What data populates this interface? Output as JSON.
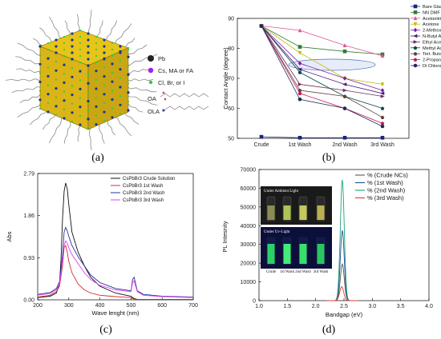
{
  "panel_labels": [
    "(a)",
    "(b)",
    "(c)",
    "(d)"
  ],
  "schematic": {
    "legend": [
      {
        "label": "Pb",
        "color": "#222222"
      },
      {
        "label": "Cs, MA or FA",
        "color": "#a020f0"
      },
      {
        "label": "Cl, Br, or I",
        "color": "#33cc33"
      }
    ],
    "ligands": [
      "OA",
      "OLA"
    ]
  },
  "chart_data": [
    {
      "type": "line",
      "panel": "b",
      "ylabel": "Contact Angle (degree)",
      "xlabel": "",
      "categories": [
        "Crude",
        "1st Wash",
        "2nd Wash",
        "3rd Wash"
      ],
      "ylim": [
        50,
        90
      ],
      "yticks": [
        50,
        60,
        70,
        80,
        90
      ],
      "series": [
        {
          "name": "Bare Glass",
          "color": "#1a237e",
          "marker": "square",
          "values": [
            50.5,
            50.2,
            50.2,
            50.2
          ]
        },
        {
          "name": "NN DMF",
          "color": "#2e7d32",
          "marker": "square",
          "values": [
            87.5,
            80.5,
            79.0,
            78.0
          ]
        },
        {
          "name": "Acetonitrile",
          "color": "#e0559a",
          "marker": "triangle",
          "values": [
            87.5,
            86.0,
            81.0,
            77.5
          ]
        },
        {
          "name": "Acetone",
          "color": "#bdbd00",
          "marker": "triangle-down",
          "values": [
            87.5,
            78.5,
            70.0,
            68.0
          ]
        },
        {
          "name": "2-Methoxy Ethanol",
          "color": "#7b1fa2",
          "marker": "diamond",
          "values": [
            87.5,
            75.0,
            70.0,
            66.0
          ]
        },
        {
          "name": "N-Butyl Acetate",
          "color": "#4a148c",
          "marker": "triangle-left",
          "values": [
            87.5,
            73.0,
            68.0,
            65.0
          ]
        },
        {
          "name": "Ethyl Acetate",
          "color": "#6d2b5b",
          "marker": "triangle-right",
          "values": [
            87.5,
            68.0,
            66.0,
            64.0
          ]
        },
        {
          "name": "Methyl Acetate",
          "color": "#004d40",
          "marker": "hexagon",
          "values": [
            87.5,
            72.0,
            64.0,
            60.0
          ]
        },
        {
          "name": "Tert. Butanol",
          "color": "#5d4037",
          "marker": "star",
          "values": [
            87.5,
            66.0,
            64.0,
            57.0
          ]
        },
        {
          "name": "2-Propanol",
          "color": "#c2185b",
          "marker": "pentagon",
          "values": [
            87.5,
            65.0,
            60.0,
            55.0
          ]
        },
        {
          "name": "Di Chloro Methane",
          "color": "#1e2a5a",
          "marker": "circle",
          "values": [
            87.5,
            63.0,
            60.0,
            54.0
          ]
        }
      ]
    },
    {
      "type": "line",
      "panel": "c",
      "xlabel": "Wave lenght (nm)",
      "ylabel": "Abs",
      "xlim": [
        200,
        700
      ],
      "ylim": [
        0,
        2.79
      ],
      "xticks": [
        200,
        300,
        400,
        500,
        600,
        700
      ],
      "yticks": [
        "0.00",
        "0.93",
        "1.86",
        "2.79"
      ],
      "series": [
        {
          "name": "CsPbBr3 Crude Solution",
          "color": "#111111",
          "x": [
            200,
            240,
            260,
            270,
            275,
            280,
            285,
            290,
            295,
            300,
            310,
            330,
            350,
            370,
            400,
            450,
            500,
            505,
            510,
            520,
            700
          ],
          "y": [
            0.05,
            0.08,
            0.15,
            0.35,
            0.9,
            1.8,
            2.4,
            2.58,
            2.45,
            2.1,
            1.5,
            1.05,
            0.75,
            0.5,
            0.3,
            0.15,
            0.08,
            0.05,
            0.03,
            0.01,
            0.01
          ]
        },
        {
          "name": "CsPbBr3 1st Wash",
          "color": "#d32f2f",
          "x": [
            200,
            240,
            260,
            270,
            280,
            285,
            290,
            295,
            300,
            310,
            330,
            350,
            370,
            400,
            450,
            500,
            505,
            510,
            520,
            700
          ],
          "y": [
            0.06,
            0.1,
            0.18,
            0.3,
            0.75,
            1.15,
            1.2,
            1.05,
            0.85,
            0.6,
            0.35,
            0.22,
            0.15,
            0.1,
            0.07,
            0.05,
            0.03,
            0.02,
            0.01,
            0.01
          ]
        },
        {
          "name": "CsPbBr3 2nd Wash",
          "color": "#283593",
          "x": [
            200,
            240,
            260,
            270,
            280,
            285,
            290,
            295,
            300,
            310,
            330,
            350,
            370,
            400,
            450,
            500,
            505,
            510,
            515,
            520,
            540,
            600,
            700
          ],
          "y": [
            0.12,
            0.16,
            0.25,
            0.4,
            1.0,
            1.5,
            1.6,
            1.52,
            1.4,
            1.2,
            0.95,
            0.75,
            0.55,
            0.38,
            0.25,
            0.2,
            0.45,
            0.5,
            0.35,
            0.2,
            0.12,
            0.08,
            0.06
          ]
        },
        {
          "name": "CsPbBr3 3rd Wash",
          "color": "#e040fb",
          "x": [
            200,
            240,
            260,
            270,
            280,
            285,
            290,
            295,
            300,
            310,
            330,
            350,
            370,
            400,
            450,
            500,
            505,
            510,
            515,
            520,
            540,
            600,
            700
          ],
          "y": [
            0.1,
            0.14,
            0.22,
            0.35,
            0.85,
            1.2,
            1.3,
            1.25,
            1.15,
            1.0,
            0.8,
            0.6,
            0.45,
            0.32,
            0.22,
            0.18,
            0.38,
            0.42,
            0.3,
            0.18,
            0.1,
            0.07,
            0.05
          ]
        }
      ]
    },
    {
      "type": "line",
      "panel": "d",
      "xlabel": "Bandgap (eV)",
      "ylabel": "PL Intesnity",
      "xlim": [
        1.0,
        4.0
      ],
      "ylim": [
        0,
        70000
      ],
      "xticks": [
        "1.0",
        "1.5",
        "2.0",
        "2.5",
        "3.0",
        "3.5",
        "4.0"
      ],
      "yticks": [
        "0",
        "10000",
        "20000",
        "30000",
        "40000",
        "50000",
        "60000",
        "70000"
      ],
      "series": [
        {
          "name": "% (Crude NCs)",
          "color": "#555555",
          "peak_x": 2.47,
          "peak_y": 19500
        },
        {
          "name": "% (1st Wash)",
          "color": "#1f4e9c",
          "peak_x": 2.47,
          "peak_y": 37500
        },
        {
          "name": "% (2nd Wash)",
          "color": "#1aa37a",
          "peak_x": 2.47,
          "peak_y": 64500
        },
        {
          "name": "% (3rd Wash)",
          "color": "#e53935",
          "peak_x": 2.46,
          "peak_y": 7500
        }
      ],
      "inset": {
        "top_caption": "Under Ambient Light",
        "bottom_caption": "Under Uv-Light",
        "vial_labels": [
          "Crude",
          "1st Wash",
          "2nd Wash",
          "3rd Wash"
        ]
      }
    }
  ]
}
